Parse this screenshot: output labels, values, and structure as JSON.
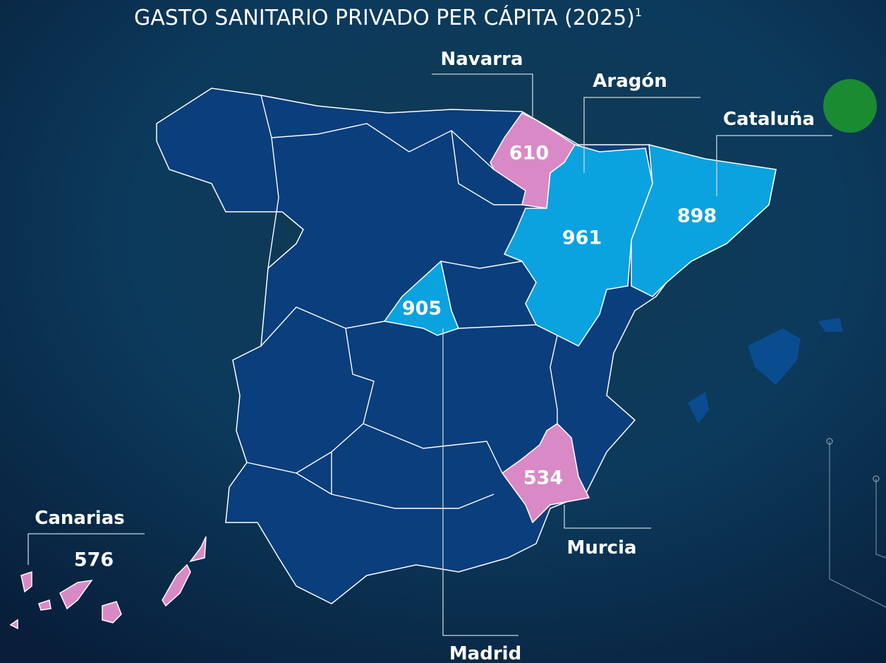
{
  "title": "GASTO SANITARIO PRIVADO PER CÁPITA (2025)",
  "title_note": "1",
  "regions": [
    {
      "name": "Navarra",
      "value": 610,
      "color": "#d98ac6"
    },
    {
      "name": "Aragón",
      "value": 961,
      "color": "#0ba2e0"
    },
    {
      "name": "Cataluña",
      "value": 898,
      "color": "#0ba2e0"
    },
    {
      "name": "Madrid",
      "value": 905,
      "color": "#0ba2e0"
    },
    {
      "name": "Murcia",
      "value": 534,
      "color": "#d98ac6"
    },
    {
      "name": "Canarias",
      "value": 576,
      "color": "#d98ac6"
    }
  ]
}
